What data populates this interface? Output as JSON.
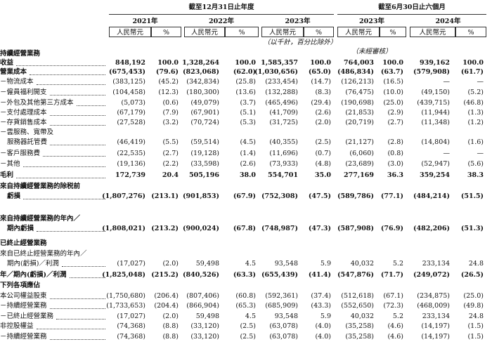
{
  "header": {
    "groups": [
      "截至12月31日止年度",
      "截至6月30日止六個月"
    ],
    "years": [
      "2021年",
      "2022年",
      "2023年",
      "2023年",
      "2024年"
    ],
    "units": [
      "人民幣元",
      "%",
      "人民幣元",
      "%",
      "人民幣元",
      "%",
      "人民幣元",
      "%",
      "人民幣元",
      "%"
    ],
    "note": "（以千計，百分比除外）",
    "unaudited": "（未經審核）"
  },
  "rows": [
    {
      "label": [
        "持續經營業務"
      ],
      "values": []
    },
    {
      "label": [
        "收益"
      ],
      "values": [
        "848,192",
        "100.0",
        "1,328,264",
        "100.0",
        "1,585,357",
        "100.0",
        "764,003",
        "100.0",
        "939,162",
        "100.0"
      ]
    },
    {
      "label": [
        "營業成本"
      ],
      "values": [
        "(675,453)",
        "(79.6)",
        "(823,068)",
        "(62.0)",
        "(1,030,656)",
        "(65.0)",
        "(486,834)",
        "(63.7)",
        "(579,908)",
        "(61.7)"
      ]
    },
    {
      "label": [
        "－物流成本"
      ],
      "values": [
        "(383,125)",
        "(45.2)",
        "(342,834)",
        "(25.8)",
        "(233,454)",
        "(14.7)",
        "(126,213)",
        "(16.5)",
        "—",
        "—"
      ]
    },
    {
      "label": [
        "－僱員福利開支"
      ],
      "values": [
        "(104,458)",
        "(12.3)",
        "(180,300)",
        "(13.6)",
        "(132,288)",
        "(8.3)",
        "(76,475)",
        "(10.0)",
        "(49,150)",
        "(5.2)"
      ]
    },
    {
      "label": [
        "－外包及其他第三方成本"
      ],
      "values": [
        "(5,073)",
        "(0.6)",
        "(49,079)",
        "(3.7)",
        "(465,496)",
        "(29.4)",
        "(190,698)",
        "(25.0)",
        "(439,715)",
        "(46.8)"
      ]
    },
    {
      "label": [
        "－支付處理成本"
      ],
      "values": [
        "(67,179)",
        "(7.9)",
        "(67,901)",
        "(5.1)",
        "(41,709)",
        "(2.6)",
        "(21,853)",
        "(2.9)",
        "(11,944)",
        "(1.3)"
      ]
    },
    {
      "label": [
        "－存貨銷售成本"
      ],
      "values": [
        "(27,528)",
        "(3.2)",
        "(70,724)",
        "(5.3)",
        "(31,725)",
        "(2.0)",
        "(20,719)",
        "(2.7)",
        "(11,348)",
        "(1.2)"
      ]
    },
    {
      "label": [
        "－雲服務、寬帶及",
        "服務器託管費"
      ],
      "values": [
        "(46,419)",
        "(5.5)",
        "(59,514)",
        "(4.5)",
        "(40,355)",
        "(2.5)",
        "(21,127)",
        "(2.8)",
        "(14,804)",
        "(1.6)"
      ]
    },
    {
      "label": [
        "－客戶服務費"
      ],
      "values": [
        "(22,535)",
        "(2.7)",
        "(19,128)",
        "(1.4)",
        "(11,696)",
        "(0.7)",
        "(6,060)",
        "(0.8)",
        "—",
        "—"
      ]
    },
    {
      "label": [
        "－其他"
      ],
      "values": [
        "(19,136)",
        "(2.2)",
        "(33,598)",
        "(2.6)",
        "(73,933)",
        "(4.8)",
        "(23,689)",
        "(3.0)",
        "(52,947)",
        "(5.6)"
      ]
    },
    {
      "label": [
        "毛利"
      ],
      "values": [
        "172,739",
        "20.4",
        "505,196",
        "38.0",
        "554,701",
        "35.0",
        "277,169",
        "36.3",
        "359,254",
        "38.3"
      ]
    },
    {
      "label": [
        "來自持續經營業務的除税前",
        "虧損"
      ],
      "values": [
        "(1,807,276)",
        "(213.1)",
        "(901,853)",
        "(67.9)",
        "(752,308)",
        "(47.5)",
        "(589,786)",
        "(77.1)",
        "(484,214)",
        "(51.5)"
      ]
    },
    {
      "label": [
        "來自持續經營業務的年內／",
        "期內虧損"
      ],
      "values": [
        "(1,808,021)",
        "(213.2)",
        "(900,024)",
        "(67.8)",
        "(748,987)",
        "(47.3)",
        "(587,908)",
        "(76.9)",
        "(482,206)",
        "(51.3)"
      ]
    },
    {
      "label": [
        "已終止經營業務"
      ],
      "values": []
    },
    {
      "label": [
        "來自已終止經營業務的年內／",
        "期內(虧損)／利潤"
      ],
      "values": [
        "(17,027)",
        "(2.0)",
        "59,498",
        "4.5",
        "93,548",
        "5.9",
        "40,032",
        "5.2",
        "233,134",
        "24.8"
      ]
    },
    {
      "label": [
        "年／期內(虧損)／利潤"
      ],
      "values": [
        "(1,825,048)",
        "(215.2)",
        "(840,526)",
        "(63.3)",
        "(655,439)",
        "(41.4)",
        "(547,876)",
        "(71.7)",
        "(249,072)",
        "(26.5)"
      ]
    },
    {
      "label": [
        "下列各項應佔"
      ],
      "values": []
    },
    {
      "label": [
        "本公司權益股東"
      ],
      "values": [
        "(1,750,680)",
        "(206.4)",
        "(807,406)",
        "(60.8)",
        "(592,361)",
        "(37.4)",
        "(512,618)",
        "(67.1)",
        "(234,875)",
        "(25.0)"
      ]
    },
    {
      "label": [
        "－持續經營業務"
      ],
      "values": [
        "(1,733,653)",
        "(204.4)",
        "(866,904)",
        "(65.3)",
        "(685,909)",
        "(43.3)",
        "(552,650)",
        "(72.3)",
        "(468,009)",
        "(49.8)"
      ]
    },
    {
      "label": [
        "－已終止經營業務"
      ],
      "values": [
        "(17,027)",
        "(2.0)",
        "59,498",
        "4.5",
        "93,548",
        "5.9",
        "40,032",
        "5.2",
        "233,134",
        "24.8"
      ]
    },
    {
      "label": [
        "非控股權益"
      ],
      "values": [
        "(74,368)",
        "(8.8)",
        "(33,120)",
        "(2.5)",
        "(63,078)",
        "(4.0)",
        "(35,258)",
        "(4.6)",
        "(14,197)",
        "(1.5)"
      ]
    },
    {
      "label": [
        "－持續經營業務"
      ],
      "values": [
        "(74,368)",
        "(8.8)",
        "(33,120)",
        "(2.5)",
        "(63,078)",
        "(4.0)",
        "(35,258)",
        "(4.6)",
        "(14,197)",
        "(1.5)"
      ]
    }
  ]
}
